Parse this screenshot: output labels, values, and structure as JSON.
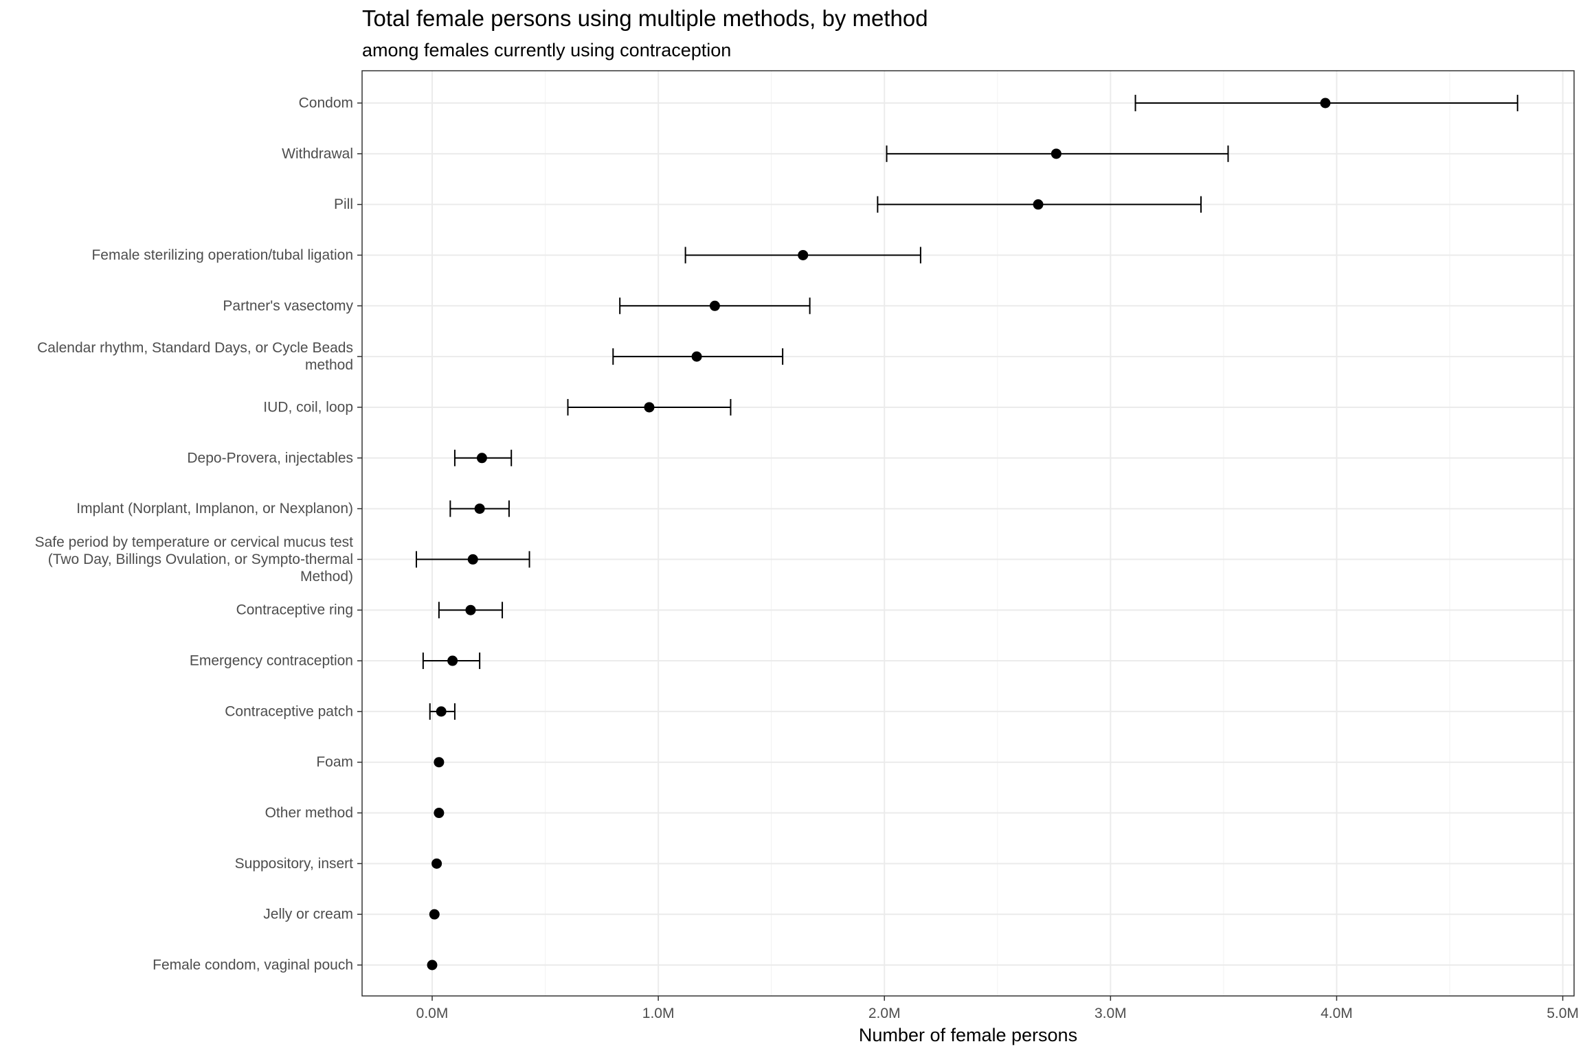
{
  "chart_data": {
    "type": "scatter",
    "title": "Total female persons using multiple methods, by method",
    "subtitle": "among females currently using contraception",
    "xlabel": "Number of female persons",
    "ylabel": "",
    "xlim": [
      -0.31,
      5.05
    ],
    "x_ticks": [
      {
        "value": 0,
        "label": "0.0M"
      },
      {
        "value": 1,
        "label": "1.0M"
      },
      {
        "value": 2,
        "label": "2.0M"
      },
      {
        "value": 3,
        "label": "3.0M"
      },
      {
        "value": 4,
        "label": "4.0M"
      },
      {
        "value": 5,
        "label": "5.0M"
      }
    ],
    "grid": true,
    "legend": "none",
    "point_color": "#000000",
    "unit": "millions",
    "categories": [
      {
        "label": [
          "Condom"
        ],
        "value": 3.95,
        "low": 3.11,
        "high": 4.8
      },
      {
        "label": [
          "Withdrawal"
        ],
        "value": 2.76,
        "low": 2.01,
        "high": 3.52
      },
      {
        "label": [
          "Pill"
        ],
        "value": 2.68,
        "low": 1.97,
        "high": 3.4
      },
      {
        "label": [
          "Female sterilizing operation/tubal ligation"
        ],
        "value": 1.64,
        "low": 1.12,
        "high": 2.16
      },
      {
        "label": [
          "Partner's vasectomy"
        ],
        "value": 1.25,
        "low": 0.83,
        "high": 1.67
      },
      {
        "label": [
          "Calendar rhythm, Standard Days, or Cycle Beads",
          "method"
        ],
        "value": 1.17,
        "low": 0.8,
        "high": 1.55
      },
      {
        "label": [
          "IUD, coil, loop"
        ],
        "value": 0.96,
        "low": 0.6,
        "high": 1.32
      },
      {
        "label": [
          "Depo-Provera, injectables"
        ],
        "value": 0.22,
        "low": 0.1,
        "high": 0.35
      },
      {
        "label": [
          "Implant (Norplant, Implanon, or Nexplanon)"
        ],
        "value": 0.21,
        "low": 0.08,
        "high": 0.34
      },
      {
        "label": [
          "Safe period by temperature or cervical mucus test",
          "(Two Day, Billings Ovulation, or Sympto-thermal",
          "Method)"
        ],
        "value": 0.18,
        "low": -0.07,
        "high": 0.43
      },
      {
        "label": [
          "Contraceptive ring"
        ],
        "value": 0.17,
        "low": 0.03,
        "high": 0.31
      },
      {
        "label": [
          "Emergency contraception"
        ],
        "value": 0.09,
        "low": -0.04,
        "high": 0.21
      },
      {
        "label": [
          "Contraceptive patch"
        ],
        "value": 0.04,
        "low": -0.01,
        "high": 0.1
      },
      {
        "label": [
          "Foam"
        ],
        "value": 0.03,
        "low": null,
        "high": null
      },
      {
        "label": [
          "Other method"
        ],
        "value": 0.03,
        "low": null,
        "high": null
      },
      {
        "label": [
          "Suppository, insert"
        ],
        "value": 0.02,
        "low": null,
        "high": null
      },
      {
        "label": [
          "Jelly or cream"
        ],
        "value": 0.01,
        "low": null,
        "high": null
      },
      {
        "label": [
          "Female condom, vaginal pouch"
        ],
        "value": 0.0,
        "low": null,
        "high": null
      }
    ]
  }
}
